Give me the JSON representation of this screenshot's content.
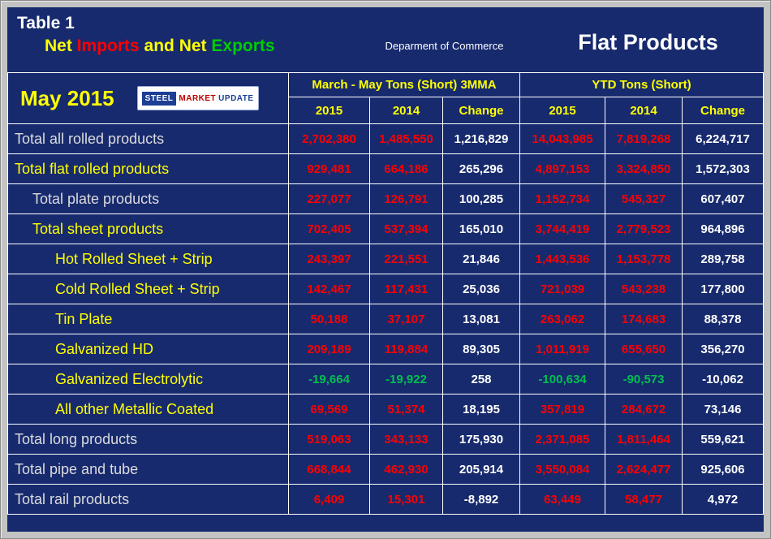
{
  "colors": {
    "background_navy": "#172a6e",
    "frame_gray": "#c3c3c3",
    "accent_yellow": "#ffff00",
    "positive_red": "#ff0000",
    "negative_green": "#00c050",
    "change_white": "#ffffff",
    "exports_green": "#00cc00"
  },
  "header": {
    "table_label": "Table 1",
    "title_parts": [
      {
        "text": "Net ",
        "color": "#ffff00"
      },
      {
        "text": "Imports",
        "color": "#ff0000"
      },
      {
        "text": " and Net ",
        "color": "#ffff00"
      },
      {
        "text": "Exports",
        "color": "#00cc00"
      }
    ],
    "department": "Deparment of Commerce",
    "product_title": "Flat Products"
  },
  "subheader": {
    "period": "May 2015",
    "logo": {
      "part1": "STEEL",
      "part2": "MARKET",
      "part3": "UPDATE"
    }
  },
  "table": {
    "column_groups": [
      {
        "label": "March - May Tons (Short) 3MMA",
        "columns": [
          "2015",
          "2014",
          "Change"
        ]
      },
      {
        "label": "YTD Tons (Short)",
        "columns": [
          "2015",
          "2014",
          "Change"
        ]
      }
    ],
    "rows": [
      {
        "label": "Total all rolled products",
        "indent": 0,
        "label_color": "white",
        "values": [
          "2,702,380",
          "1,485,550",
          "1,216,829",
          "14,043,985",
          "7,819,268",
          "6,224,717"
        ]
      },
      {
        "label": "Total flat rolled products",
        "indent": 0,
        "label_color": "yellow",
        "values": [
          "929,481",
          "664,186",
          "265,296",
          "4,897,153",
          "3,324,850",
          "1,572,303"
        ]
      },
      {
        "label": "Total plate products",
        "indent": 1,
        "label_color": "white",
        "values": [
          "227,077",
          "126,791",
          "100,285",
          "1,152,734",
          "545,327",
          "607,407"
        ]
      },
      {
        "label": "Total sheet products",
        "indent": 1,
        "label_color": "yellow",
        "values": [
          "702,405",
          "537,394",
          "165,010",
          "3,744,419",
          "2,779,523",
          "964,896"
        ]
      },
      {
        "label": "Hot Rolled Sheet + Strip",
        "indent": 2,
        "label_color": "yellow",
        "values": [
          "243,397",
          "221,551",
          "21,846",
          "1,443,536",
          "1,153,778",
          "289,758"
        ]
      },
      {
        "label": "Cold Rolled Sheet + Strip",
        "indent": 2,
        "label_color": "yellow",
        "values": [
          "142,467",
          "117,431",
          "25,036",
          "721,039",
          "543,238",
          "177,800"
        ]
      },
      {
        "label": "Tin Plate",
        "indent": 2,
        "label_color": "yellow",
        "values": [
          "50,188",
          "37,107",
          "13,081",
          "263,062",
          "174,683",
          "88,378"
        ]
      },
      {
        "label": "Galvanized HD",
        "indent": 2,
        "label_color": "yellow",
        "values": [
          "209,189",
          "119,884",
          "89,305",
          "1,011,919",
          "655,650",
          "356,270"
        ]
      },
      {
        "label": "Galvanized Electrolytic",
        "indent": 2,
        "label_color": "yellow",
        "values": [
          "-19,664",
          "-19,922",
          "258",
          "-100,634",
          "-90,573",
          "-10,062"
        ]
      },
      {
        "label": "All other Metallic Coated",
        "indent": 2,
        "label_color": "yellow",
        "values": [
          "69,569",
          "51,374",
          "18,195",
          "357,819",
          "284,672",
          "73,146"
        ]
      },
      {
        "label": "Total long products",
        "indent": 0,
        "label_color": "white",
        "values": [
          "519,063",
          "343,133",
          "175,930",
          "2,371,085",
          "1,811,464",
          "559,621"
        ]
      },
      {
        "label": "Total pipe and tube",
        "indent": 0,
        "label_color": "white",
        "values": [
          "668,844",
          "462,930",
          "205,914",
          "3,550,084",
          "2,624,477",
          "925,606"
        ]
      },
      {
        "label": "Total rail products",
        "indent": 0,
        "label_color": "white",
        "values": [
          "6,409",
          "15,301",
          "-8,892",
          "63,449",
          "58,477",
          "4,972"
        ]
      }
    ]
  }
}
